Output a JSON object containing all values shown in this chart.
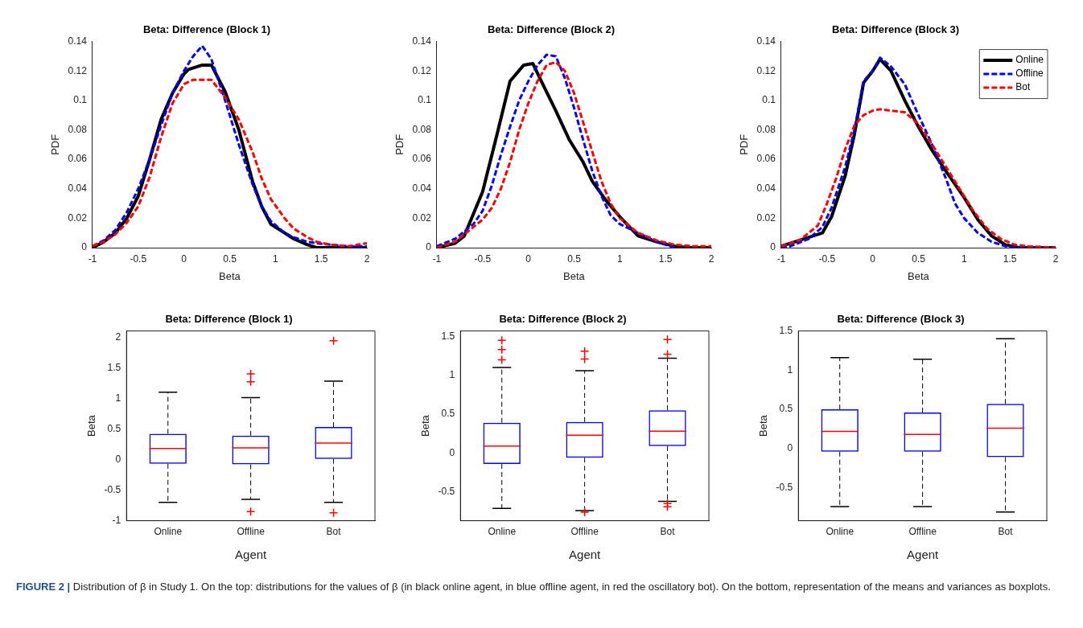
{
  "chart_data": [
    {
      "type": "line",
      "title": "Beta: Difference (Block 1)",
      "xlabel": "Beta",
      "ylabel": "PDF",
      "xlim": [
        -1,
        2
      ],
      "ylim": [
        0,
        0.14
      ],
      "xticks": [
        -1,
        -0.5,
        0,
        0.5,
        1,
        1.5,
        2
      ],
      "yticks": [
        0,
        0.02,
        0.04,
        0.06,
        0.08,
        0.1,
        0.12,
        0.14
      ],
      "series": [
        {
          "color": "#000000",
          "line_style": "solid",
          "x": [
            -1,
            -0.875,
            -0.75,
            -0.625,
            -0.5,
            -0.375,
            -0.25,
            -0.125,
            0,
            0.05,
            0.2,
            0.3,
            0.45,
            0.6,
            0.75,
            0.85,
            0.95,
            1.1,
            1.2,
            1.35,
            1.45,
            1.6,
            1.8,
            2
          ],
          "values": [
            0,
            0.004,
            0.01,
            0.02,
            0.035,
            0.06,
            0.087,
            0.105,
            0.118,
            0.121,
            0.124,
            0.124,
            0.106,
            0.08,
            0.045,
            0.028,
            0.016,
            0.01,
            0.006,
            0.002,
            0,
            0,
            0,
            0
          ]
        },
        {
          "color": "#0000ff",
          "line_style": "dashed",
          "x": [
            -1,
            -0.875,
            -0.75,
            -0.625,
            -0.5,
            -0.375,
            -0.25,
            -0.125,
            0,
            0.1,
            0.2,
            0.3,
            0.45,
            0.6,
            0.75,
            0.85,
            0.95,
            1.1,
            1.2,
            1.35,
            1.45,
            1.6,
            1.8,
            2
          ],
          "values": [
            0.001,
            0.005,
            0.012,
            0.024,
            0.04,
            0.06,
            0.083,
            0.105,
            0.12,
            0.13,
            0.137,
            0.128,
            0.1,
            0.07,
            0.043,
            0.028,
            0.018,
            0.01,
            0.007,
            0.004,
            0.003,
            0.002,
            0.001,
            0.001
          ]
        },
        {
          "color": "#ff0000",
          "line_style": "dashed",
          "x": [
            -1,
            -0.875,
            -0.75,
            -0.625,
            -0.5,
            -0.375,
            -0.25,
            -0.125,
            0,
            0.1,
            0.2,
            0.3,
            0.45,
            0.6,
            0.75,
            0.85,
            0.95,
            1.1,
            1.2,
            1.35,
            1.45,
            1.6,
            1.8,
            2
          ],
          "values": [
            0.001,
            0.004,
            0.009,
            0.017,
            0.028,
            0.048,
            0.075,
            0.098,
            0.111,
            0.114,
            0.114,
            0.114,
            0.102,
            0.087,
            0.065,
            0.047,
            0.033,
            0.02,
            0.013,
            0.007,
            0.004,
            0.002,
            0.001,
            0.003
          ]
        }
      ]
    },
    {
      "type": "line",
      "title": "Beta: Difference (Block 2)",
      "xlabel": "Beta",
      "ylabel": "PDF",
      "xlim": [
        -1,
        2
      ],
      "ylim": [
        0,
        0.14
      ],
      "xticks": [
        -1,
        -0.5,
        0,
        0.5,
        1,
        1.5,
        2
      ],
      "yticks": [
        0,
        0.02,
        0.04,
        0.06,
        0.08,
        0.1,
        0.12,
        0.14
      ],
      "series": [
        {
          "color": "#000000",
          "line_style": "solid",
          "x": [
            -1,
            -0.8,
            -0.7,
            -0.5,
            -0.35,
            -0.2,
            -0.05,
            0.05,
            0.15,
            0.3,
            0.45,
            0.6,
            0.7,
            0.85,
            1,
            1.2,
            1.4,
            1.6,
            1.75,
            2
          ],
          "values": [
            0,
            0.003,
            0.008,
            0.038,
            0.075,
            0.113,
            0.124,
            0.125,
            0.112,
            0.093,
            0.073,
            0.058,
            0.045,
            0.032,
            0.021,
            0.008,
            0.004,
            0.001,
            0,
            0
          ]
        },
        {
          "color": "#0000ff",
          "line_style": "dashed",
          "x": [
            -1,
            -0.8,
            -0.6,
            -0.5,
            -0.4,
            -0.3,
            -0.2,
            -0.1,
            0,
            0.1,
            0.2,
            0.3,
            0.4,
            0.5,
            0.6,
            0.7,
            0.8,
            0.9,
            1,
            1.2,
            1.4,
            1.6
          ],
          "values": [
            0.001,
            0.006,
            0.016,
            0.025,
            0.042,
            0.063,
            0.082,
            0.1,
            0.113,
            0.124,
            0.131,
            0.13,
            0.115,
            0.095,
            0.073,
            0.052,
            0.035,
            0.022,
            0.016,
            0.01,
            0.004,
            0
          ]
        },
        {
          "color": "#ff0000",
          "line_style": "dashed",
          "x": [
            -1,
            -0.8,
            -0.6,
            -0.5,
            -0.4,
            -0.3,
            -0.2,
            -0.1,
            0,
            0.1,
            0.2,
            0.3,
            0.4,
            0.5,
            0.6,
            0.7,
            0.8,
            0.9,
            1,
            1.2,
            1.4,
            1.6,
            1.8,
            2
          ],
          "values": [
            0,
            0.004,
            0.014,
            0.019,
            0.027,
            0.04,
            0.058,
            0.08,
            0.098,
            0.113,
            0.124,
            0.126,
            0.12,
            0.105,
            0.085,
            0.065,
            0.045,
            0.03,
            0.02,
            0.01,
            0.005,
            0.002,
            0.001,
            0.001
          ]
        }
      ]
    },
    {
      "type": "line",
      "title": "Beta: Difference (Block 3)",
      "xlabel": "Beta",
      "ylabel": "PDF",
      "xlim": [
        -1,
        2
      ],
      "ylim": [
        0,
        0.14
      ],
      "xticks": [
        -1,
        -0.5,
        0,
        0.5,
        1,
        1.5,
        2
      ],
      "yticks": [
        0,
        0.02,
        0.04,
        0.06,
        0.08,
        0.1,
        0.12,
        0.14
      ],
      "legend": "top right",
      "series": [
        {
          "name": "Online",
          "color": "#000000",
          "line_style": "solid",
          "x": [
            -1,
            -0.8,
            -0.55,
            -0.45,
            -0.3,
            -0.2,
            -0.1,
            0,
            0.08,
            0.2,
            0.35,
            0.5,
            0.65,
            0.8,
            1,
            1.15,
            1.3,
            1.45,
            1.6,
            2
          ],
          "values": [
            0.001,
            0.005,
            0.01,
            0.021,
            0.049,
            0.077,
            0.112,
            0.12,
            0.128,
            0.12,
            0.1,
            0.082,
            0.066,
            0.052,
            0.034,
            0.019,
            0.008,
            0.002,
            0,
            0
          ]
        },
        {
          "name": "Offline",
          "color": "#0000ff",
          "line_style": "dashed",
          "x": [
            -1,
            -0.9,
            -0.7,
            -0.55,
            -0.45,
            -0.3,
            -0.2,
            -0.1,
            0,
            0.08,
            0.2,
            0.35,
            0.5,
            0.65,
            0.8,
            0.9,
            1,
            1.15,
            1.3,
            1.45,
            1.55,
            2
          ],
          "values": [
            0,
            0.001,
            0.006,
            0.014,
            0.027,
            0.055,
            0.08,
            0.113,
            0.12,
            0.129,
            0.123,
            0.111,
            0.09,
            0.07,
            0.047,
            0.03,
            0.02,
            0.01,
            0.004,
            0.001,
            0,
            0
          ]
        },
        {
          "name": "Bot",
          "color": "#ff0000",
          "line_style": "dashed",
          "x": [
            -1,
            -0.8,
            -0.6,
            -0.5,
            -0.4,
            -0.3,
            -0.2,
            -0.1,
            0,
            0.08,
            0.2,
            0.35,
            0.5,
            0.65,
            0.8,
            0.95,
            1.1,
            1.25,
            1.4,
            1.55,
            1.7,
            2
          ],
          "values": [
            0.001,
            0.005,
            0.015,
            0.03,
            0.047,
            0.067,
            0.083,
            0.09,
            0.093,
            0.094,
            0.093,
            0.092,
            0.084,
            0.07,
            0.055,
            0.04,
            0.025,
            0.013,
            0.006,
            0.002,
            0.001,
            0
          ]
        }
      ]
    },
    {
      "type": "box",
      "title": "Beta: Difference (Block 1)",
      "xlabel": "Agent",
      "ylabel": "Beta",
      "categories": [
        "Online",
        "Offline",
        "Bot"
      ],
      "color": "#0000ff",
      "ylim": [
        -1,
        2.1
      ],
      "yticks": [
        -1,
        -0.5,
        0,
        0.5,
        1,
        1.5,
        2
      ],
      "boxes": [
        {
          "low": -0.7,
          "q1": -0.07,
          "median": 0.18,
          "q3": 0.42,
          "high": 1.1
        },
        {
          "low": -0.65,
          "q1": -0.08,
          "median": 0.19,
          "q3": 0.39,
          "high": 1.01,
          "outliers": [
            1.4,
            1.27,
            -0.85
          ]
        },
        {
          "low": -0.7,
          "q1": 0.01,
          "median": 0.27,
          "q3": 0.53,
          "high": 1.28,
          "outliers": [
            1.94,
            -0.87
          ]
        }
      ]
    },
    {
      "type": "box",
      "title": "Beta: Difference (Block 2)",
      "xlabel": "Agent",
      "ylabel": "Beta",
      "categories": [
        "Online",
        "Offline",
        "Bot"
      ],
      "color": "#0000ff",
      "ylim": [
        -0.87,
        1.57
      ],
      "yticks": [
        -0.5,
        0,
        0.5,
        1,
        1.5
      ],
      "boxes": [
        {
          "low": -0.71,
          "q1": -0.14,
          "median": 0.09,
          "q3": 0.39,
          "high": 1.1,
          "outliers": [
            1.45,
            1.33,
            1.2
          ]
        },
        {
          "low": -0.74,
          "q1": -0.06,
          "median": 0.23,
          "q3": 0.4,
          "high": 1.06,
          "outliers": [
            1.31,
            1.21,
            -0.76
          ]
        },
        {
          "low": -0.62,
          "q1": 0.09,
          "median": 0.28,
          "q3": 0.55,
          "high": 1.22,
          "outliers": [
            1.46,
            1.27,
            -0.65,
            -0.69
          ]
        }
      ]
    },
    {
      "type": "box",
      "title": "Beta: Difference (Block 3)",
      "xlabel": "Agent",
      "ylabel": "Beta",
      "categories": [
        "Online",
        "Offline",
        "Bot"
      ],
      "color": "#0000ff",
      "ylim": [
        -0.92,
        1.5
      ],
      "yticks": [
        -0.5,
        0,
        0.5,
        1,
        1.5
      ],
      "annotations": [
        "FIGURE 2 | Distribution of β in Study 1. On the top: distributions for the values of β (in black online agent, in blue offline agent, in red the oscillatory bot). On the bottom, representation of the means and variances as boxplots."
      ],
      "boxes": [
        {
          "low": -0.74,
          "q1": -0.04,
          "median": 0.22,
          "q3": 0.5,
          "high": 1.16
        },
        {
          "low": -0.74,
          "q1": -0.04,
          "median": 0.18,
          "q3": 0.46,
          "high": 1.14
        },
        {
          "low": -0.81,
          "q1": -0.11,
          "median": 0.26,
          "q3": 0.57,
          "high": 1.4
        }
      ]
    }
  ]
}
